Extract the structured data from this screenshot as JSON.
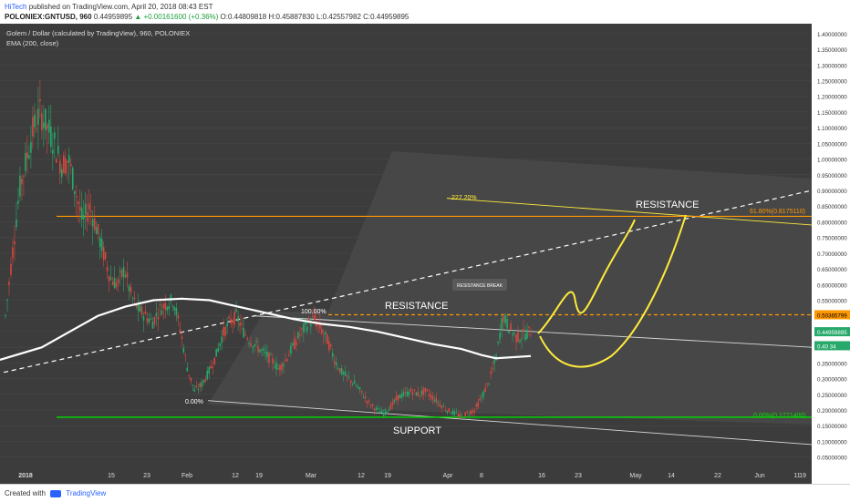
{
  "header": {
    "author": "HiTech",
    "published_text": "published on TradingView.com, April 20, 2018 08:43 EST",
    "symbol": "POLONIEX:GNTUSD, 960",
    "last": "0.44959895",
    "change": "▲ +0.00161600 (+0.36%)",
    "ohlc": "O:0.44809818 H:0.45887830 L:0.42557982 C:0.44959895"
  },
  "legend": {
    "title": "Golem / Dollar (calculated by TradingView), 960, POLONIEX",
    "indicator": "EMA (200, close)"
  },
  "footer": {
    "created_with": "Created with",
    "brand": "TradingView"
  },
  "colors": {
    "background": "#3c3c3c",
    "up_candle": "#26a96a",
    "down_candle": "#d8473f",
    "ema": "#ffffff",
    "resistance_line": "#ff9800",
    "support_line": "#00e000",
    "projection": "#ffeb3b"
  },
  "chart_data": {
    "type": "candlestick",
    "ylim": [
      0.02,
      1.42
    ],
    "y_ticks": [
      "1.40000000",
      "1.35000000",
      "1.30000000",
      "1.25000000",
      "1.20000000",
      "1.15000000",
      "1.10000000",
      "1.05000000",
      "1.00000000",
      "0.95000000",
      "0.90000000",
      "0.85000000",
      "0.80000000",
      "0.75000000",
      "0.70000000",
      "0.65000000",
      "0.60000000",
      "0.55000000",
      "0.50000000",
      "0.45000000",
      "0.40000000",
      "0.35000000",
      "0.30000000",
      "0.25000000",
      "0.20000000",
      "0.15000000",
      "0.10000000",
      "0.05000000"
    ],
    "x_ticks": [
      "2018",
      "15",
      "23",
      "Feb",
      "12",
      "19",
      "Mar",
      "12",
      "19",
      "Apr",
      "8",
      "16",
      "23",
      "May",
      "14",
      "22",
      "Jun",
      "11",
      "19"
    ],
    "price_labels": {
      "fib_high": "0.50365799",
      "current": "0.44959895",
      "ema": "0.40 34"
    },
    "levels": {
      "resistance": 0.8175,
      "breakout": 0.5037,
      "support": 0.1771
    },
    "annotations": {
      "fib_618": "61.80%(0.8175110)",
      "fib_0": "0.00%(0.1771400)",
      "fib_ext": "227.20%",
      "fib_100": "100.00%",
      "fib_0_left": "0.00%",
      "resistance_top": "RESISTANCE",
      "resistance_mid": "RESISTANCE",
      "resistance_break": "RESISTANCE BREAK",
      "support": "SUPPORT"
    },
    "ema_path": [
      [
        0,
        0.36
      ],
      [
        6,
        0.4
      ],
      [
        10,
        0.45
      ],
      [
        14,
        0.5
      ],
      [
        18,
        0.53
      ],
      [
        22,
        0.55
      ],
      [
        26,
        0.555
      ],
      [
        30,
        0.55
      ],
      [
        34,
        0.53
      ],
      [
        38,
        0.51
      ],
      [
        42,
        0.49
      ],
      [
        46,
        0.475
      ],
      [
        50,
        0.465
      ],
      [
        54,
        0.45
      ],
      [
        58,
        0.43
      ],
      [
        62,
        0.41
      ],
      [
        66,
        0.395
      ],
      [
        69,
        0.375
      ],
      [
        71,
        0.365
      ],
      [
        76,
        0.372
      ]
    ],
    "price_path": [
      [
        0,
        0.5
      ],
      [
        2,
        0.7
      ],
      [
        3,
        0.9
      ],
      [
        4,
        1.0
      ],
      [
        5,
        1.1
      ],
      [
        6,
        1.15
      ],
      [
        7,
        1.1
      ],
      [
        8,
        1.05
      ],
      [
        9,
        0.98
      ],
      [
        10,
        1.0
      ],
      [
        11,
        0.9
      ],
      [
        12,
        0.8
      ],
      [
        13,
        0.85
      ],
      [
        14,
        0.78
      ],
      [
        15,
        0.7
      ],
      [
        16,
        0.62
      ],
      [
        17,
        0.6
      ],
      [
        18,
        0.65
      ],
      [
        19,
        0.56
      ],
      [
        20,
        0.52
      ],
      [
        21,
        0.5
      ],
      [
        22,
        0.48
      ],
      [
        23,
        0.52
      ],
      [
        24,
        0.54
      ],
      [
        25,
        0.55
      ],
      [
        26,
        0.45
      ],
      [
        27,
        0.33
      ],
      [
        28,
        0.26
      ],
      [
        29,
        0.28
      ],
      [
        30,
        0.32
      ],
      [
        31,
        0.37
      ],
      [
        32,
        0.44
      ],
      [
        33,
        0.48
      ],
      [
        34,
        0.5
      ],
      [
        35,
        0.45
      ],
      [
        36,
        0.42
      ],
      [
        37,
        0.4
      ],
      [
        38,
        0.38
      ],
      [
        39,
        0.36
      ],
      [
        40,
        0.33
      ],
      [
        41,
        0.36
      ],
      [
        42,
        0.4
      ],
      [
        43,
        0.44
      ],
      [
        44,
        0.47
      ],
      [
        45,
        0.49
      ],
      [
        46,
        0.46
      ],
      [
        47,
        0.42
      ],
      [
        48,
        0.36
      ],
      [
        49,
        0.32
      ],
      [
        50,
        0.3
      ],
      [
        51,
        0.28
      ],
      [
        52,
        0.25
      ],
      [
        53,
        0.22
      ],
      [
        54,
        0.2
      ],
      [
        55,
        0.19
      ],
      [
        56,
        0.21
      ],
      [
        57,
        0.24
      ],
      [
        58,
        0.25
      ],
      [
        59,
        0.26
      ],
      [
        60,
        0.25
      ],
      [
        61,
        0.26
      ],
      [
        62,
        0.24
      ],
      [
        63,
        0.22
      ],
      [
        64,
        0.2
      ],
      [
        65,
        0.19
      ],
      [
        66,
        0.18
      ],
      [
        67,
        0.19
      ],
      [
        68,
        0.2
      ],
      [
        69,
        0.24
      ],
      [
        70,
        0.29
      ],
      [
        71,
        0.36
      ],
      [
        72,
        0.5
      ],
      [
        73,
        0.46
      ],
      [
        74,
        0.43
      ],
      [
        75,
        0.44
      ],
      [
        76,
        0.45
      ]
    ],
    "x_range": [
      0,
      100
    ]
  }
}
